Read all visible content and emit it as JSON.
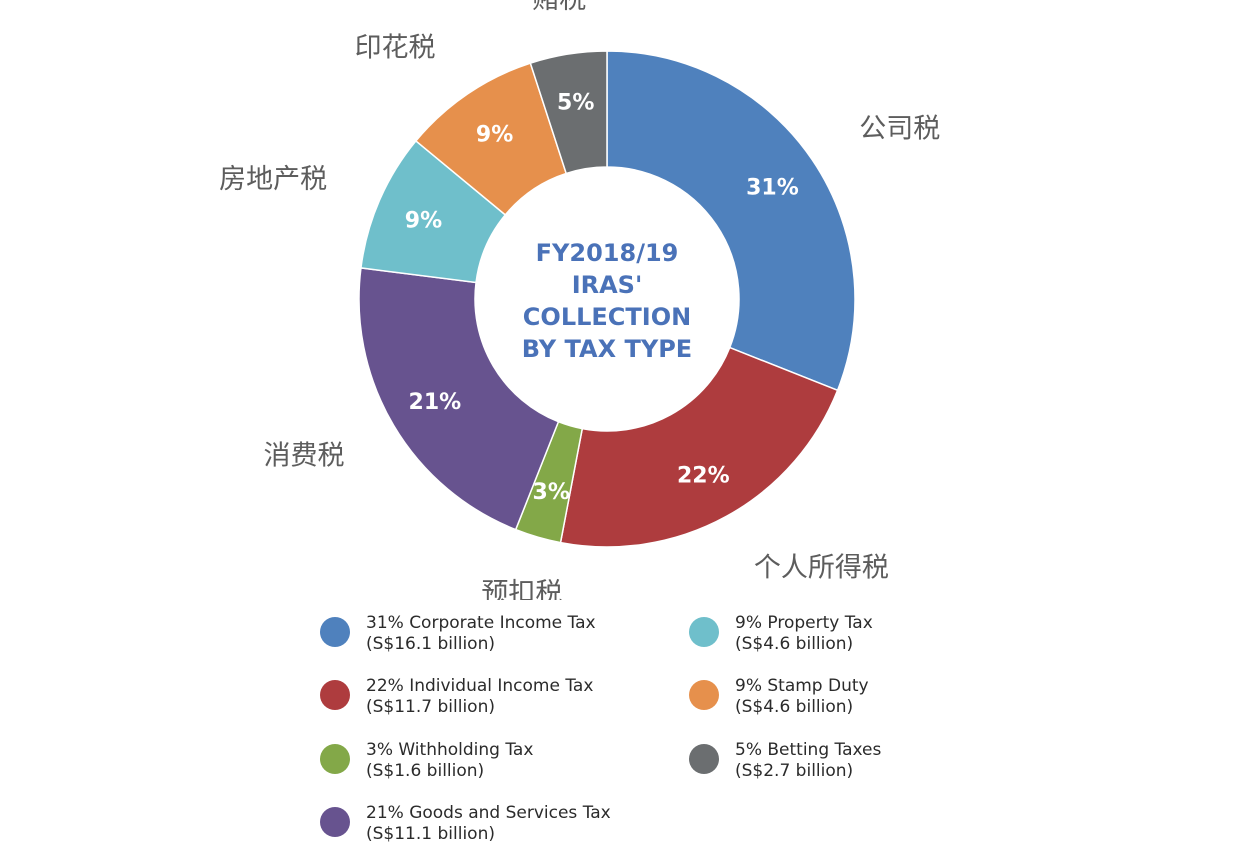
{
  "chart_data": {
    "type": "pie",
    "variant": "donut",
    "center_title": [
      "FY2018/19",
      "IRAS'",
      "COLLECTION",
      "BY TAX TYPE"
    ],
    "slices": [
      {
        "key": "corporate",
        "value": 31,
        "label": "31%",
        "cn": "公司税",
        "color": "#4f81bd",
        "legend": "31% Corporate Income Tax",
        "amount": "(S$16.1 billion)"
      },
      {
        "key": "individual",
        "value": 22,
        "label": "22%",
        "cn": "个人所得税",
        "color": "#ae3c3e",
        "legend": "22% Individual Income Tax",
        "amount": "(S$11.7 billion)"
      },
      {
        "key": "withholding",
        "value": 3,
        "label": "3%",
        "cn": "预扣税",
        "color": "#83a848",
        "legend": "3% Withholding Tax",
        "amount": "(S$1.6 billion)"
      },
      {
        "key": "gst",
        "value": 21,
        "label": "21%",
        "cn": "消费税",
        "color": "#67538f",
        "legend": "21% Goods and Services Tax",
        "amount": "(S$11.1 billion)"
      },
      {
        "key": "property",
        "value": 9,
        "label": "9%",
        "cn": "房地产税",
        "color": "#6fbfcb",
        "legend": "9% Property Tax",
        "amount": "(S$4.6 billion)"
      },
      {
        "key": "stamp",
        "value": 9,
        "label": "9%",
        "cn": "印花税",
        "color": "#e6904c",
        "legend": "9% Stamp Duty",
        "amount": "(S$4.6 billion)"
      },
      {
        "key": "betting",
        "value": 5,
        "label": "5%",
        "cn": "赌税",
        "color": "#6b6e70",
        "legend": "5% Betting Taxes",
        "amount": "(S$2.7 billion)"
      }
    ],
    "legend_order": [
      "corporate",
      "individual",
      "withholding",
      "gst",
      "property",
      "stamp",
      "betting"
    ]
  }
}
